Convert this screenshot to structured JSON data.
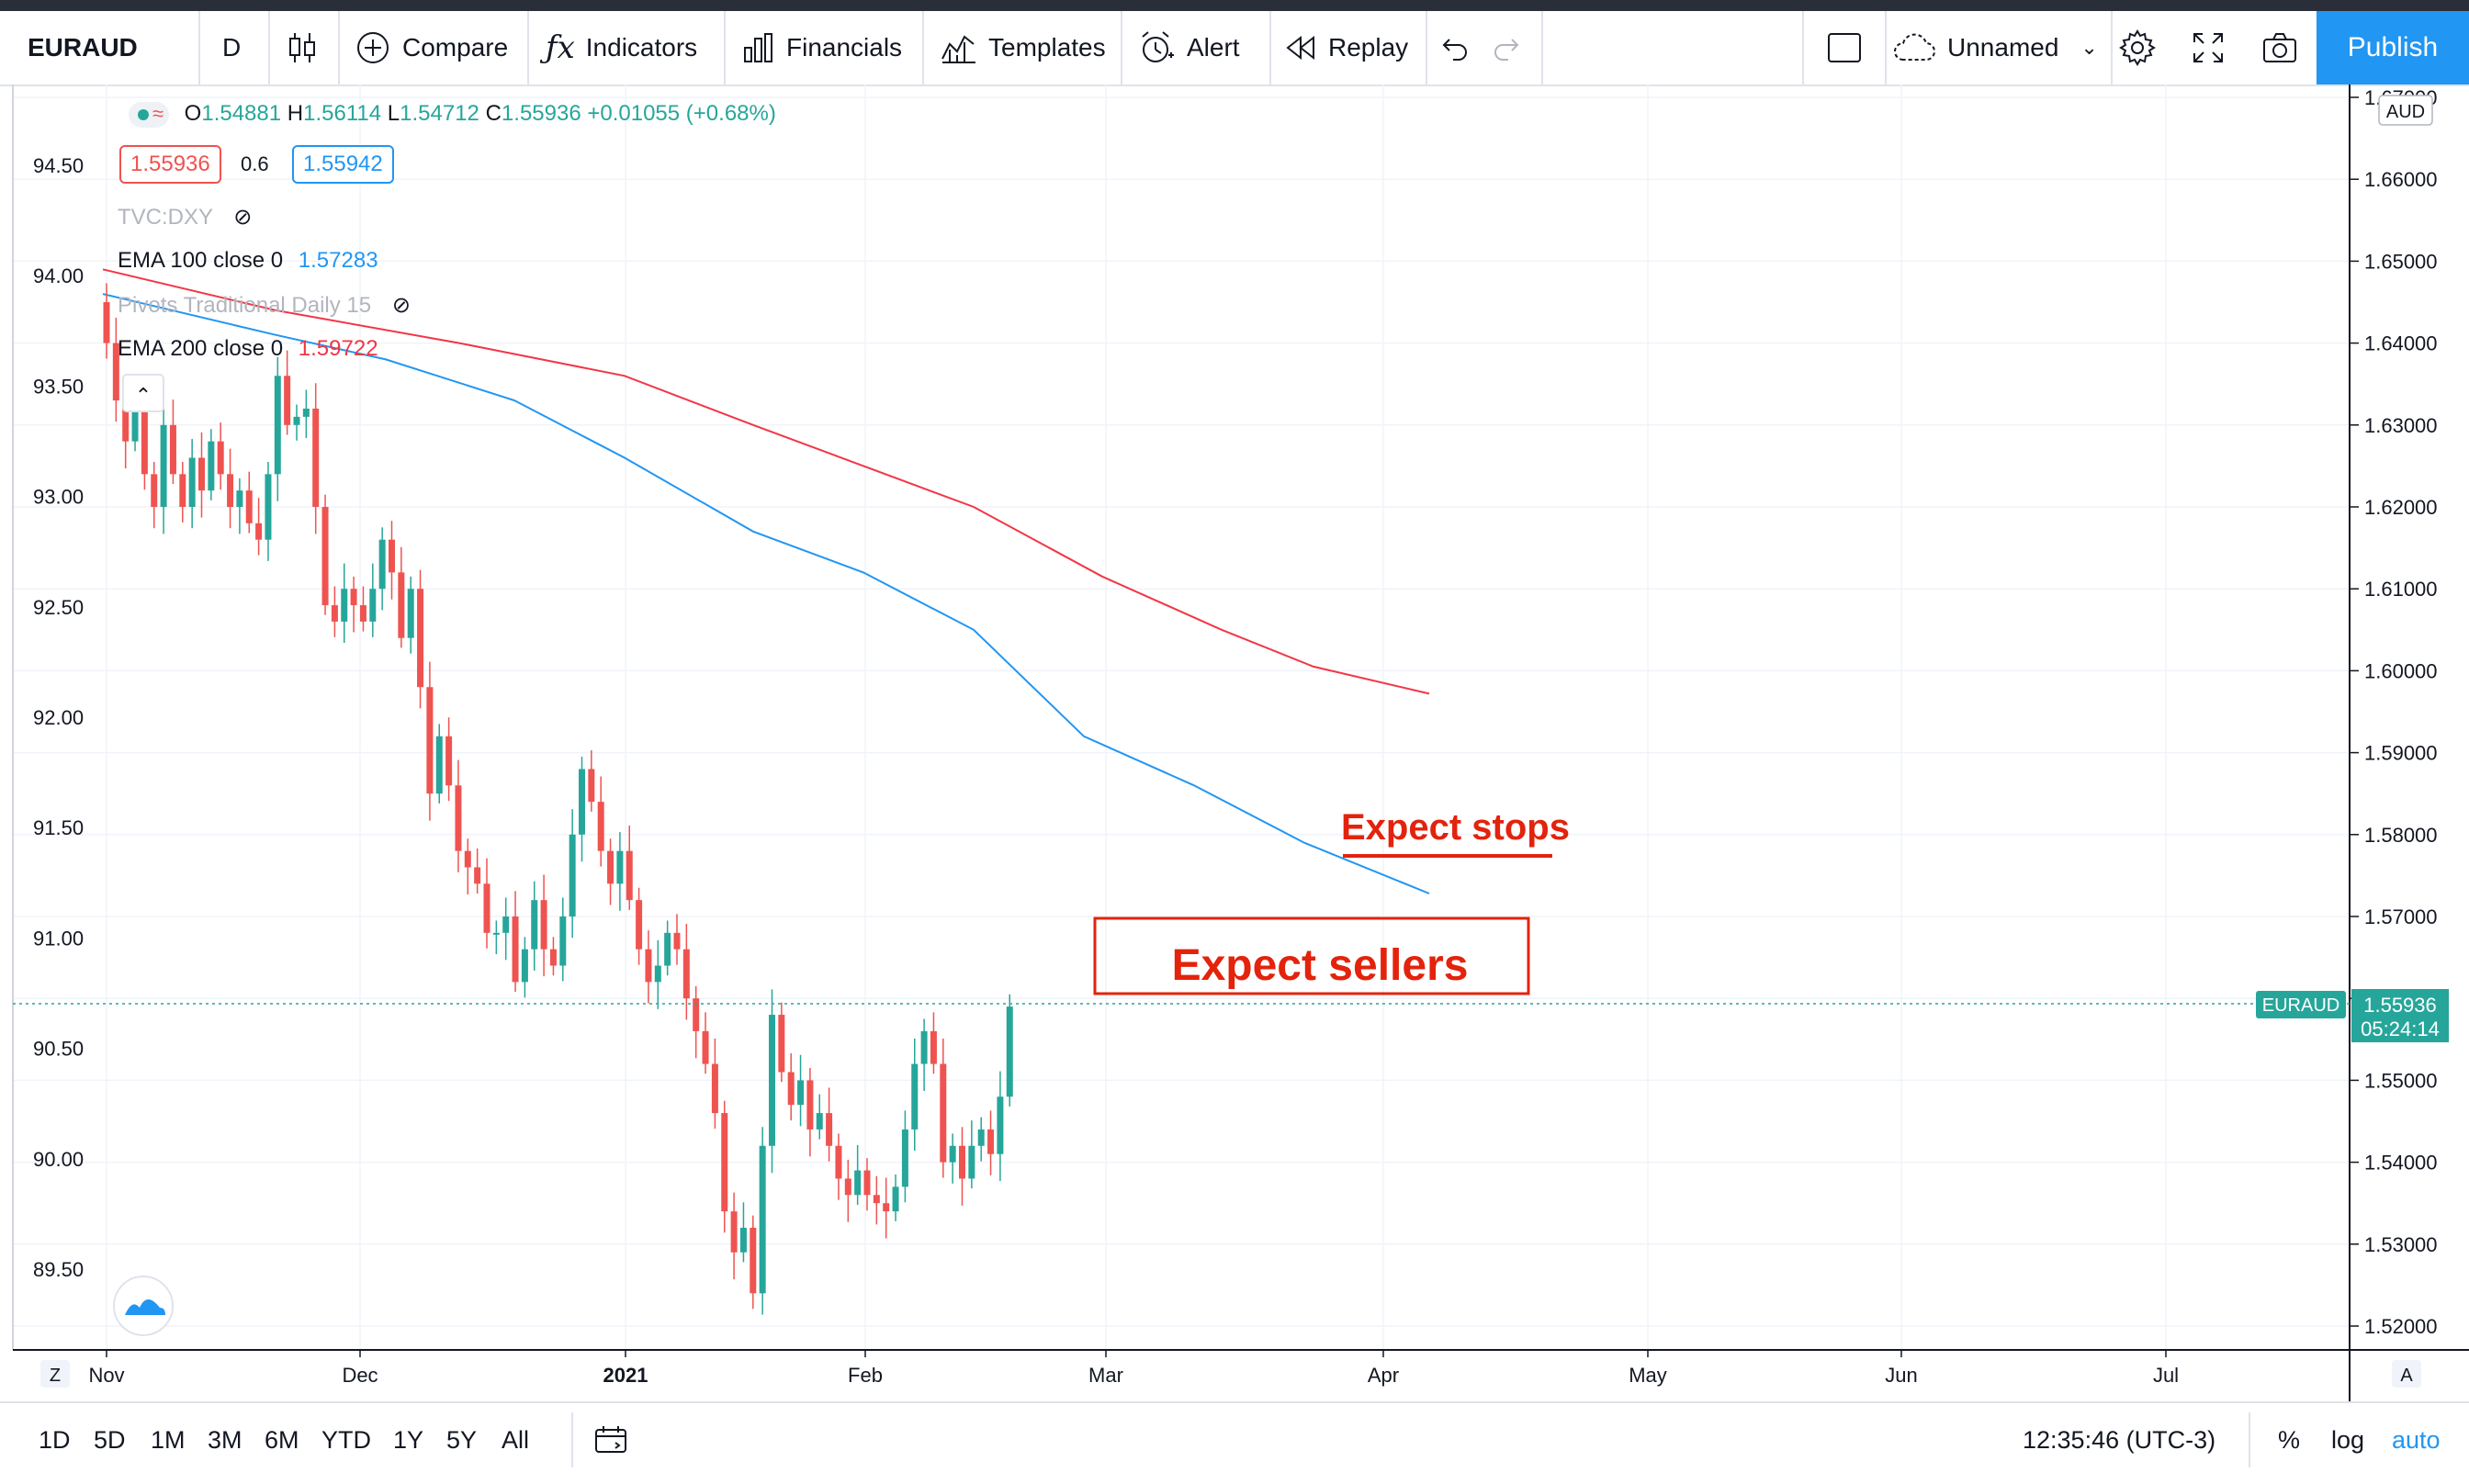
{
  "toolbar": {
    "symbol": "EURAUD",
    "interval": "D",
    "bar_style_icon": "candles-icon",
    "compare": "Compare",
    "indicators": "Indicators",
    "financials": "Financials",
    "templates": "Templates",
    "alert": "Alert",
    "replay": "Replay",
    "layout_name": "Unnamed",
    "publish": "Publish"
  },
  "legend": {
    "ohlc": {
      "o_label": "O",
      "o": "1.54881",
      "h_label": "H",
      "h": "1.56114",
      "l_label": "L",
      "l": "1.54712",
      "c_label": "C",
      "c": "1.55936",
      "change": "+0.01055 (+0.68%)"
    },
    "sell_price": "1.55936",
    "spread": "0.6",
    "buy_price": "1.55942",
    "studies": [
      {
        "name": "TVC:DXY",
        "value": "",
        "hidden": true
      },
      {
        "name": "EMA 100 close 0",
        "value": "1.57283",
        "color": "#2196f3"
      },
      {
        "name": "Pivots Traditional Daily 15",
        "value": "",
        "hidden": true
      },
      {
        "name": "EMA 200 close 0",
        "value": "1.59722",
        "color": "#f23645"
      }
    ]
  },
  "colors": {
    "up": "#26a69a",
    "down": "#ef5350",
    "ema100": "#2196f3",
    "ema200": "#f23645",
    "annotation": "#e3230c",
    "price_label": "#26a69a",
    "accent": "#2196f3"
  },
  "annotations": {
    "stops": "Expect stops",
    "sellers": "Expect sellers"
  },
  "price_label": {
    "symbol": "EURAUD",
    "price": "1.55936",
    "countdown": "05:24:14"
  },
  "right_axis": {
    "currency": "AUD",
    "ticks": [
      "1.52000",
      "1.53000",
      "1.54000",
      "1.55000",
      "1.56000",
      "1.57000",
      "1.58000",
      "1.59000",
      "1.60000",
      "1.61000",
      "1.62000",
      "1.63000",
      "1.64000",
      "1.65000",
      "1.66000",
      "1.67000"
    ]
  },
  "left_axis": {
    "ticks": [
      "89.50",
      "90.00",
      "90.50",
      "91.00",
      "91.50",
      "92.00",
      "92.50",
      "93.00",
      "93.50",
      "94.00",
      "94.50"
    ]
  },
  "time_axis": {
    "labels": [
      "Nov",
      "Dec",
      "2021",
      "Feb",
      "Mar",
      "Apr",
      "May",
      "Jun",
      "Jul"
    ],
    "left_button": "Z",
    "right_button": "A"
  },
  "bottom": {
    "ranges": [
      "1D",
      "5D",
      "1M",
      "3M",
      "6M",
      "YTD",
      "1Y",
      "5Y",
      "All"
    ],
    "time": "12:35:46 (UTC-3)",
    "percent": "%",
    "log": "log",
    "auto": "auto"
  },
  "chart_data": {
    "type": "candlestick",
    "symbol": "EURAUD",
    "interval": "D",
    "y_range": [
      1.515,
      1.675
    ],
    "x_range_months": [
      "Nov",
      "Jul"
    ],
    "series": [
      {
        "name": "EMA 100 close 0",
        "last": 1.57283
      },
      {
        "name": "EMA 200 close 0",
        "last": 1.59722
      }
    ],
    "last_price": 1.55936,
    "grid": true
  }
}
